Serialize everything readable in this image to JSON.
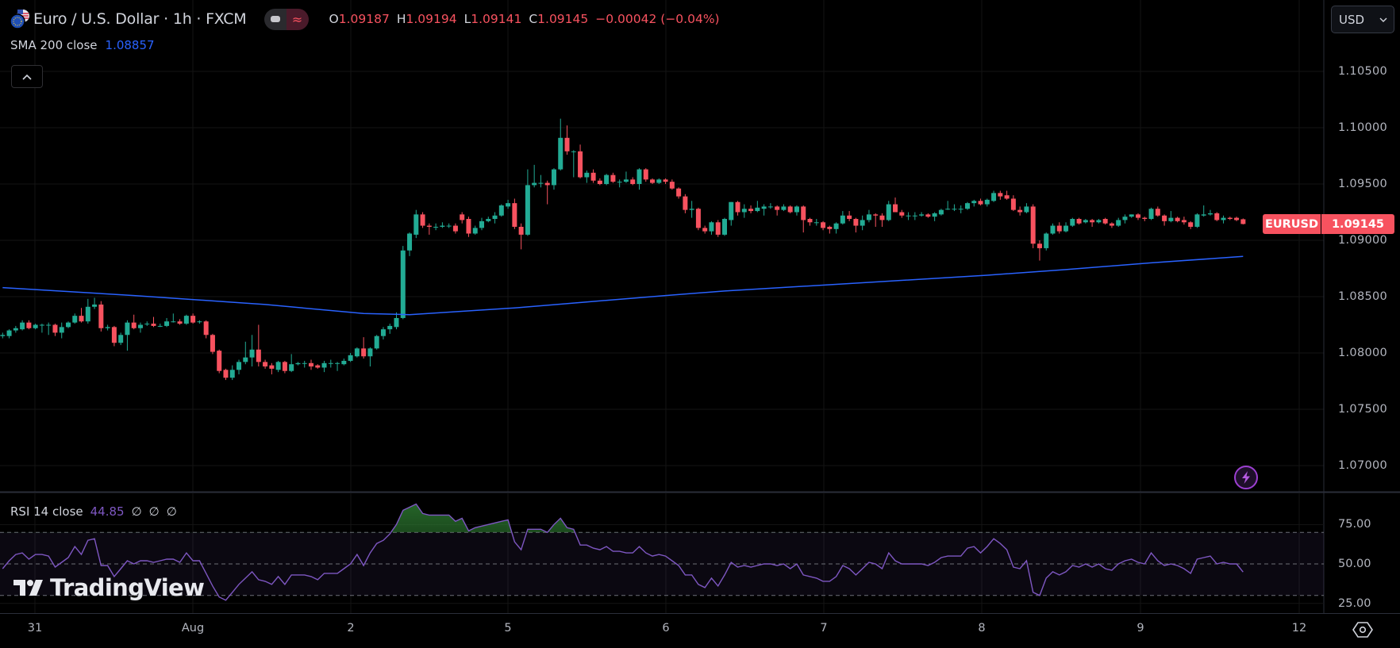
{
  "header": {
    "symbol_title": "Euro / U.S. Dollar · 1h · FXCM",
    "flag_icon": "eu-us-flag-icon",
    "ohlc": {
      "o_label": "O",
      "o": "1.09187",
      "h_label": "H",
      "h": "1.09194",
      "l_label": "L",
      "l": "1.09141",
      "c_label": "C",
      "c": "1.09145",
      "change": "−0.00042 (−0.04%)"
    },
    "currency": "USD"
  },
  "sma": {
    "label": "SMA 200 close",
    "value": "1.08857"
  },
  "rsi": {
    "label": "RSI 14 close",
    "value": "44.85",
    "extras": [
      "∅",
      "∅",
      "∅"
    ]
  },
  "price_axis": {
    "ticks": [
      "1.10500",
      "1.10000",
      "1.09500",
      "1.09000",
      "1.08500",
      "1.08000",
      "1.07500",
      "1.07000"
    ]
  },
  "rsi_axis": {
    "ticks": [
      "75.00",
      "50.00",
      "25.00"
    ]
  },
  "time_axis": {
    "labels": [
      "31",
      "Aug",
      "2",
      "5",
      "6",
      "7",
      "8",
      "9",
      "12"
    ]
  },
  "last_price_tag": {
    "symbol": "EURUSD",
    "price": "1.09145"
  },
  "watermark": "TradingView",
  "colors": {
    "up": "#22ab94",
    "down": "#f7525f",
    "sma": "#2962ff",
    "rsi": "#7e57c2",
    "background": "#000000"
  },
  "chart_data": {
    "type": "candlestick",
    "interval": "1h",
    "ylim": [
      1.0675,
      1.1075
    ],
    "rsi_levels": [
      70,
      50,
      30
    ],
    "candles": [
      [
        1.0815,
        1.0818,
        1.0813,
        1.0816
      ],
      [
        1.0815,
        1.0821,
        1.0813,
        1.082
      ],
      [
        1.082,
        1.0824,
        1.0818,
        1.0822
      ],
      [
        1.0821,
        1.0829,
        1.082,
        1.0827
      ],
      [
        1.0827,
        1.0829,
        1.0821,
        1.0822
      ],
      [
        1.0822,
        1.0826,
        1.0821,
        1.0825
      ],
      [
        1.0825,
        1.0826,
        1.0818,
        1.0825
      ],
      [
        1.0825,
        1.0827,
        1.0816,
        1.0825
      ],
      [
        1.0825,
        1.0826,
        1.0815,
        1.0818
      ],
      [
        1.0818,
        1.0827,
        1.0813,
        1.0823
      ],
      [
        1.0823,
        1.0828,
        1.0822,
        1.0827
      ],
      [
        1.0827,
        1.0835,
        1.0826,
        1.0833
      ],
      [
        1.0833,
        1.084,
        1.0827,
        1.0828
      ],
      [
        1.0828,
        1.0848,
        1.0826,
        1.0841
      ],
      [
        1.0841,
        1.0849,
        1.0839,
        1.0843
      ],
      [
        1.0843,
        1.0846,
        1.0819,
        1.0822
      ],
      [
        1.0822,
        1.0825,
        1.082,
        1.0823
      ],
      [
        1.0823,
        1.0824,
        1.0806,
        1.0809
      ],
      [
        1.0809,
        1.0818,
        1.0807,
        1.0816
      ],
      [
        1.0816,
        1.0829,
        1.0802,
        1.0827
      ],
      [
        1.0827,
        1.0834,
        1.0821,
        1.0822
      ],
      [
        1.0822,
        1.0827,
        1.0818,
        1.0825
      ],
      [
        1.0826,
        1.0828,
        1.0824,
        1.0826
      ],
      [
        1.0826,
        1.0832,
        1.0823,
        1.0824
      ],
      [
        1.0824,
        1.0826,
        1.0823,
        1.0824
      ],
      [
        1.0824,
        1.0831,
        1.0823,
        1.0828
      ],
      [
        1.0828,
        1.0835,
        1.0827,
        1.0828
      ],
      [
        1.0828,
        1.083,
        1.0825,
        1.0826
      ],
      [
        1.0826,
        1.0834,
        1.0825,
        1.0833
      ],
      [
        1.0833,
        1.0835,
        1.0826,
        1.0827
      ],
      [
        1.0828,
        1.0829,
        1.0826,
        1.0828
      ],
      [
        1.0828,
        1.0829,
        1.0813,
        1.0816
      ],
      [
        1.0816,
        1.0817,
        1.0799,
        1.0801
      ],
      [
        1.0802,
        1.0803,
        1.0782,
        1.0784
      ],
      [
        1.0785,
        1.0786,
        1.0776,
        1.0778
      ],
      [
        1.0778,
        1.0789,
        1.0776,
        1.0785
      ],
      [
        1.0785,
        1.0794,
        1.0781,
        1.0792
      ],
      [
        1.0792,
        1.081,
        1.079,
        1.0796
      ],
      [
        1.0796,
        1.0816,
        1.0788,
        1.0803
      ],
      [
        1.0803,
        1.0825,
        1.0788,
        1.0792
      ],
      [
        1.0792,
        1.0794,
        1.0786,
        1.0788
      ],
      [
        1.0789,
        1.0791,
        1.0781,
        1.0786
      ],
      [
        1.0785,
        1.0793,
        1.0783,
        1.0792
      ],
      [
        1.0792,
        1.0793,
        1.0782,
        1.0784
      ],
      [
        1.0784,
        1.0799,
        1.0783,
        1.079
      ],
      [
        1.079,
        1.0792,
        1.0789,
        1.0791
      ],
      [
        1.0791,
        1.0793,
        1.0787,
        1.0791
      ],
      [
        1.0791,
        1.0794,
        1.0785,
        1.0788
      ],
      [
        1.0789,
        1.079,
        1.0786,
        1.0787
      ],
      [
        1.0787,
        1.0793,
        1.0783,
        1.0791
      ],
      [
        1.0791,
        1.0794,
        1.0787,
        1.0791
      ],
      [
        1.0791,
        1.0792,
        1.0784,
        1.0791
      ],
      [
        1.079,
        1.0795,
        1.0789,
        1.0793
      ],
      [
        1.0793,
        1.08,
        1.0792,
        1.0798
      ],
      [
        1.0797,
        1.0805,
        1.0796,
        1.0804
      ],
      [
        1.0804,
        1.0814,
        1.0795,
        1.0797
      ],
      [
        1.0797,
        1.0805,
        1.0788,
        1.0804
      ],
      [
        1.0804,
        1.0816,
        1.0803,
        1.0815
      ],
      [
        1.0815,
        1.0823,
        1.0812,
        1.0821
      ],
      [
        1.0821,
        1.0826,
        1.0817,
        1.0824
      ],
      [
        1.0823,
        1.0836,
        1.0821,
        1.0831
      ],
      [
        1.0831,
        1.0895,
        1.083,
        1.0891
      ],
      [
        1.0891,
        1.0907,
        1.0886,
        1.0906
      ],
      [
        1.0905,
        1.0927,
        1.0902,
        1.0923
      ],
      [
        1.0923,
        1.0925,
        1.0911,
        1.0913
      ],
      [
        1.0913,
        1.0915,
        1.0905,
        1.0912
      ],
      [
        1.0912,
        1.0915,
        1.0909,
        1.0912
      ],
      [
        1.0912,
        1.0916,
        1.0911,
        1.0913
      ],
      [
        1.0913,
        1.0915,
        1.0911,
        1.0913
      ],
      [
        1.0913,
        1.0915,
        1.0906,
        1.0908
      ],
      [
        1.0923,
        1.0925,
        1.0915,
        1.0918
      ],
      [
        1.0919,
        1.0921,
        1.0903,
        1.0906
      ],
      [
        1.0906,
        1.0913,
        1.0905,
        1.0911
      ],
      [
        1.0911,
        1.092,
        1.0909,
        1.0917
      ],
      [
        1.0917,
        1.0921,
        1.0916,
        1.0919
      ],
      [
        1.0919,
        1.0925,
        1.0915,
        1.0922
      ],
      [
        1.0922,
        1.0932,
        1.0921,
        1.0931
      ],
      [
        1.093,
        1.0936,
        1.0928,
        1.0933
      ],
      [
        1.0933,
        1.0937,
        1.091,
        1.0912
      ],
      [
        1.0912,
        1.0915,
        1.0892,
        1.0905
      ],
      [
        1.0905,
        1.0963,
        1.0904,
        1.0949
      ],
      [
        1.0949,
        1.0967,
        1.0947,
        1.0951
      ],
      [
        1.0951,
        1.0958,
        1.0947,
        1.0951
      ],
      [
        1.0951,
        1.0953,
        1.0932,
        1.0949
      ],
      [
        1.0949,
        1.0964,
        1.0945,
        1.0963
      ],
      [
        1.0963,
        1.1008,
        1.0962,
        1.0991
      ],
      [
        1.0991,
        1.1002,
        1.0976,
        1.0979
      ],
      [
        1.0979,
        1.098,
        1.0956,
        1.0979
      ],
      [
        1.0979,
        1.0985,
        1.0955,
        1.0956
      ],
      [
        1.0956,
        1.0962,
        1.0951,
        1.096
      ],
      [
        1.096,
        1.0963,
        1.0951,
        1.0953
      ],
      [
        1.0953,
        1.0955,
        1.0949,
        1.095
      ],
      [
        1.095,
        1.0959,
        1.0949,
        1.0958
      ],
      [
        1.0958,
        1.096,
        1.0951,
        1.0952
      ],
      [
        1.0952,
        1.0954,
        1.0947,
        1.0952
      ],
      [
        1.0952,
        1.0961,
        1.0951,
        1.0954
      ],
      [
        1.0954,
        1.0956,
        1.0949,
        1.095
      ],
      [
        1.095,
        1.0964,
        1.0945,
        1.0963
      ],
      [
        1.0963,
        1.0964,
        1.0952,
        1.0954
      ],
      [
        1.0954,
        1.0955,
        1.095,
        1.0951
      ],
      [
        1.0951,
        1.0955,
        1.095,
        1.0954
      ],
      [
        1.0954,
        1.0955,
        1.095,
        1.0952
      ],
      [
        1.0952,
        1.0954,
        1.0945,
        1.0946
      ],
      [
        1.0946,
        1.0947,
        1.0937,
        1.0939
      ],
      [
        1.0939,
        1.0941,
        1.0924,
        1.0927
      ],
      [
        1.0927,
        1.0935,
        1.092,
        1.0928
      ],
      [
        1.0928,
        1.0929,
        1.0909,
        1.0911
      ],
      [
        1.0911,
        1.0913,
        1.0906,
        1.0908
      ],
      [
        1.0908,
        1.0917,
        1.0905,
        1.0916
      ],
      [
        1.0916,
        1.0918,
        1.0903,
        1.0905
      ],
      [
        1.0905,
        1.092,
        1.0904,
        1.0919
      ],
      [
        1.0918,
        1.0934,
        1.0913,
        1.0934
      ],
      [
        1.0934,
        1.0935,
        1.0922,
        1.0925
      ],
      [
        1.0925,
        1.0932,
        1.092,
        1.0928
      ],
      [
        1.0928,
        1.0931,
        1.0924,
        1.0926
      ],
      [
        1.0926,
        1.0935,
        1.0925,
        1.0929
      ],
      [
        1.0928,
        1.0932,
        1.0922,
        1.093
      ],
      [
        1.093,
        1.0933,
        1.0928,
        1.093
      ],
      [
        1.093,
        1.0931,
        1.0922,
        1.0927
      ],
      [
        1.0927,
        1.0932,
        1.0926,
        1.093
      ],
      [
        1.093,
        1.0931,
        1.0924,
        1.0925
      ],
      [
        1.0925,
        1.0931,
        1.0922,
        1.093
      ],
      [
        1.093,
        1.0931,
        1.0907,
        1.0918
      ],
      [
        1.0919,
        1.092,
        1.0913,
        1.0916
      ],
      [
        1.0916,
        1.0919,
        1.0913,
        1.0916
      ],
      [
        1.0916,
        1.0917,
        1.0909,
        1.0911
      ],
      [
        1.0912,
        1.0913,
        1.0906,
        1.091
      ],
      [
        1.091,
        1.0916,
        1.0906,
        1.0915
      ],
      [
        1.0915,
        1.0926,
        1.0914,
        1.0922
      ],
      [
        1.0922,
        1.0926,
        1.0917,
        1.0919
      ],
      [
        1.0919,
        1.092,
        1.0907,
        1.0913
      ],
      [
        1.0913,
        1.0922,
        1.0909,
        1.0918
      ],
      [
        1.0918,
        1.0927,
        1.0916,
        1.0923
      ],
      [
        1.0923,
        1.0924,
        1.0912,
        1.0922
      ],
      [
        1.0922,
        1.0924,
        1.0912,
        1.0918
      ],
      [
        1.0918,
        1.0935,
        1.0917,
        1.0932
      ],
      [
        1.0932,
        1.0938,
        1.0925,
        1.0925
      ],
      [
        1.0925,
        1.0927,
        1.092,
        1.0922
      ],
      [
        1.0922,
        1.0925,
        1.0918,
        1.0922
      ],
      [
        1.0922,
        1.0925,
        1.0918,
        1.0922
      ],
      [
        1.0922,
        1.0925,
        1.0921,
        1.0923
      ],
      [
        1.0923,
        1.0924,
        1.092,
        1.0921
      ],
      [
        1.0921,
        1.0925,
        1.0917,
        1.0924
      ],
      [
        1.0923,
        1.0928,
        1.0922,
        1.0927
      ],
      [
        1.0928,
        1.0935,
        1.0927,
        1.0928
      ],
      [
        1.0928,
        1.0932,
        1.0926,
        1.0928
      ],
      [
        1.0928,
        1.0931,
        1.0924,
        1.0928
      ],
      [
        1.0928,
        1.0934,
        1.0927,
        1.0933
      ],
      [
        1.0933,
        1.0936,
        1.093,
        1.0935
      ],
      [
        1.0935,
        1.0937,
        1.0931,
        1.0932
      ],
      [
        1.0932,
        1.0937,
        1.093,
        1.0936
      ],
      [
        1.0935,
        1.0944,
        1.0934,
        1.0942
      ],
      [
        1.0942,
        1.0944,
        1.0936,
        1.0939
      ],
      [
        1.094,
        1.0944,
        1.0936,
        1.0937
      ],
      [
        1.0937,
        1.094,
        1.0926,
        1.0927
      ],
      [
        1.0927,
        1.093,
        1.0922,
        1.0925
      ],
      [
        1.0925,
        1.0933,
        1.0924,
        1.093
      ],
      [
        1.093,
        1.0932,
        1.0893,
        1.0897
      ],
      [
        1.0897,
        1.09,
        1.0882,
        1.0893
      ],
      [
        1.0893,
        1.0907,
        1.0891,
        1.0906
      ],
      [
        1.0906,
        1.0915,
        1.0905,
        1.0913
      ],
      [
        1.0913,
        1.0916,
        1.0906,
        1.0908
      ],
      [
        1.0908,
        1.0916,
        1.0907,
        1.0913
      ],
      [
        1.0913,
        1.092,
        1.0912,
        1.0919
      ],
      [
        1.0919,
        1.092,
        1.0914,
        1.0915
      ],
      [
        1.0916,
        1.0919,
        1.0915,
        1.0918
      ],
      [
        1.0918,
        1.0919,
        1.0912,
        1.0916
      ],
      [
        1.0916,
        1.0919,
        1.0915,
        1.0918
      ],
      [
        1.0919,
        1.092,
        1.0914,
        1.0915
      ],
      [
        1.0915,
        1.0916,
        1.0911,
        1.0913
      ],
      [
        1.0913,
        1.092,
        1.0912,
        1.0918
      ],
      [
        1.0918,
        1.0923,
        1.0915,
        1.0921
      ],
      [
        1.0921,
        1.0923,
        1.092,
        1.0923
      ],
      [
        1.0923,
        1.0924,
        1.0918,
        1.092
      ],
      [
        1.092,
        1.0921,
        1.0917,
        1.0919
      ],
      [
        1.0919,
        1.0929,
        1.0918,
        1.0928
      ],
      [
        1.0928,
        1.093,
        1.0921,
        1.0922
      ],
      [
        1.0922,
        1.0923,
        1.0913,
        1.0917
      ],
      [
        1.0917,
        1.0926,
        1.0916,
        1.092
      ],
      [
        1.092,
        1.0921,
        1.0916,
        1.0917
      ],
      [
        1.0918,
        1.0921,
        1.0914,
        1.0916
      ],
      [
        1.0916,
        1.0917,
        1.091,
        1.0912
      ],
      [
        1.0912,
        1.0924,
        1.0911,
        1.0923
      ],
      [
        1.0922,
        1.0931,
        1.0921,
        1.0923
      ],
      [
        1.0923,
        1.0927,
        1.0922,
        1.0924
      ],
      [
        1.0924,
        1.0925,
        1.0917,
        1.0918
      ],
      [
        1.0918,
        1.0922,
        1.0915,
        1.092
      ],
      [
        1.092,
        1.0921,
        1.0918,
        1.0919
      ],
      [
        1.092,
        1.0921,
        1.0917,
        1.0918
      ],
      [
        1.09187,
        1.09194,
        1.09141,
        1.09145
      ]
    ],
    "sma200": {
      "at_bar": [
        0,
        20,
        40,
        55,
        62,
        78,
        101,
        110,
        130,
        150,
        162,
        175,
        189
      ],
      "value": [
        1.0858,
        1.0851,
        1.0843,
        1.0835,
        1.0834,
        1.084,
        1.0851,
        1.0855,
        1.0862,
        1.0869,
        1.0874,
        1.088,
        1.08857
      ]
    },
    "rsi14": [
      47,
      52,
      56,
      57,
      53,
      56,
      56,
      55,
      48,
      51,
      54,
      61,
      56,
      65,
      66,
      49,
      49,
      42,
      47,
      52,
      50,
      52,
      52,
      51,
      52,
      53,
      53,
      51,
      57,
      52,
      52,
      44,
      36,
      29,
      27,
      32,
      37,
      41,
      45,
      40,
      39,
      37,
      42,
      37,
      43,
      43,
      43,
      42,
      40,
      44,
      44,
      44,
      47,
      50,
      56,
      49,
      57,
      63,
      65,
      69,
      75,
      84,
      86,
      88,
      82,
      81,
      81,
      81,
      81,
      77,
      79,
      71,
      73,
      74,
      75,
      76,
      77,
      78,
      64,
      59,
      72,
      72,
      72,
      70,
      75,
      79,
      73,
      72,
      62,
      62,
      60,
      59,
      61,
      58,
      58,
      57,
      57,
      61,
      57,
      55,
      56,
      55,
      52,
      49,
      43,
      43,
      37,
      35,
      41,
      36,
      43,
      51,
      48,
      49,
      48,
      49,
      50,
      50,
      49,
      50,
      47,
      50,
      43,
      42,
      41,
      39,
      39,
      42,
      49,
      47,
      43,
      47,
      51,
      50,
      47,
      57,
      52,
      50,
      50,
      50,
      50,
      49,
      51,
      54,
      55,
      55,
      55,
      60,
      61,
      57,
      61,
      66,
      63,
      59,
      48,
      47,
      52,
      32,
      30,
      41,
      45,
      43,
      45,
      49,
      48,
      50,
      48,
      50,
      47,
      46,
      50,
      52,
      53,
      51,
      50,
      57,
      52,
      49,
      50,
      49,
      47,
      44,
      53,
      54,
      55,
      50,
      51,
      50,
      50,
      44.85
    ]
  }
}
